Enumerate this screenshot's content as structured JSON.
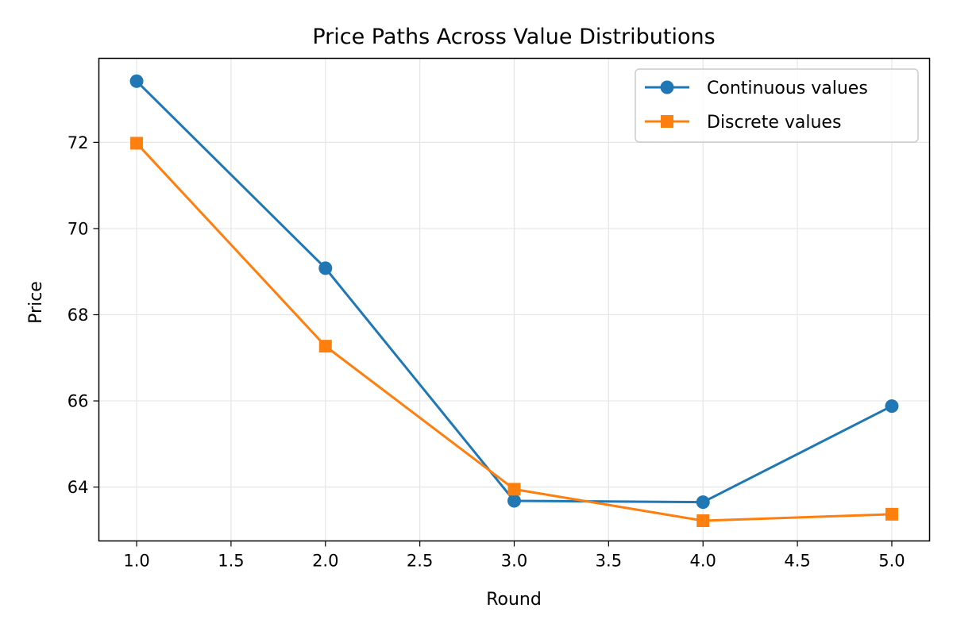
{
  "chart_data": {
    "type": "line",
    "title": "Price Paths Across Value Distributions",
    "xlabel": "Round",
    "ylabel": "Price",
    "x": [
      1.0,
      2.0,
      3.0,
      4.0,
      5.0
    ],
    "xlim": [
      0.8,
      5.2
    ],
    "ylim": [
      62.75,
      73.95
    ],
    "xticks": [
      1.0,
      1.5,
      2.0,
      2.5,
      3.0,
      3.5,
      4.0,
      4.5,
      5.0
    ],
    "xtick_labels": [
      "1.0",
      "1.5",
      "2.0",
      "2.5",
      "3.0",
      "3.5",
      "4.0",
      "4.5",
      "5.0"
    ],
    "yticks": [
      64,
      66,
      68,
      70,
      72
    ],
    "ytick_labels": [
      "64",
      "66",
      "68",
      "70",
      "72"
    ],
    "grid": true,
    "legend_position": "top-right",
    "series": [
      {
        "name": "Continuous values",
        "values": [
          73.42,
          69.08,
          63.68,
          63.65,
          65.88
        ],
        "color": "#1f77b4",
        "marker": "circle"
      },
      {
        "name": "Discrete values",
        "values": [
          71.98,
          67.27,
          63.95,
          63.22,
          63.37
        ],
        "color": "#ff7f0e",
        "marker": "square"
      }
    ]
  }
}
